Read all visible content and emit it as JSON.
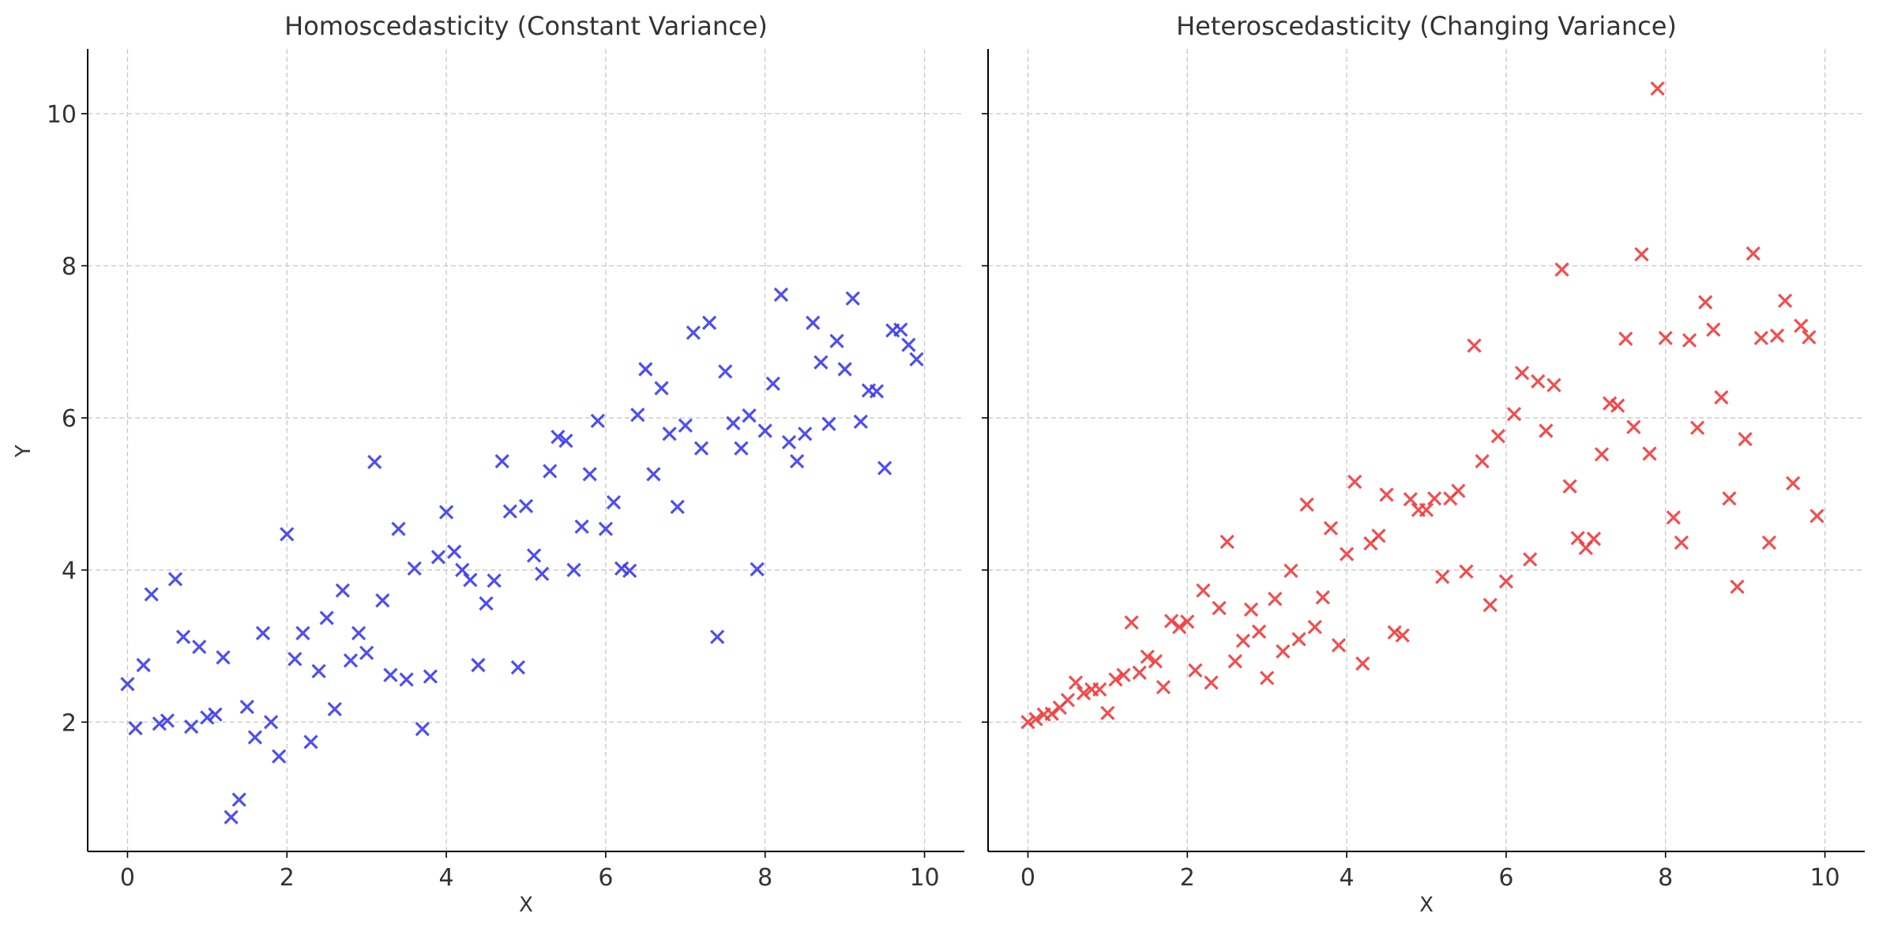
{
  "chart_data": [
    {
      "type": "scatter",
      "title": "Homoscedasticity (Constant Variance)",
      "xlabel": "X",
      "ylabel": "Y",
      "xlim": [
        -0.5,
        10.5
      ],
      "ylim": [
        0.3,
        10.85
      ],
      "xticks": [
        0,
        2,
        4,
        6,
        8,
        10
      ],
      "yticks": [
        2,
        4,
        6,
        8,
        10
      ],
      "grid": true,
      "marker": "x",
      "color": "#3b3bf0",
      "series": [
        {
          "points": [
            [
              0.0,
              2.5
            ],
            [
              0.1,
              1.92
            ],
            [
              0.2,
              2.75
            ],
            [
              0.3,
              3.68
            ],
            [
              0.4,
              1.98
            ],
            [
              0.5,
              2.02
            ],
            [
              0.6,
              3.88
            ],
            [
              0.7,
              3.12
            ],
            [
              0.8,
              1.94
            ],
            [
              0.9,
              2.99
            ],
            [
              1.0,
              2.06
            ],
            [
              1.1,
              2.1
            ],
            [
              1.2,
              2.85
            ],
            [
              1.3,
              0.75
            ],
            [
              1.4,
              0.98
            ],
            [
              1.5,
              2.2
            ],
            [
              1.6,
              1.8
            ],
            [
              1.7,
              3.17
            ],
            [
              1.8,
              2.0
            ],
            [
              1.9,
              1.55
            ],
            [
              2.0,
              4.47
            ],
            [
              2.1,
              2.83
            ],
            [
              2.2,
              3.17
            ],
            [
              2.3,
              1.74
            ],
            [
              2.4,
              2.67
            ],
            [
              2.5,
              3.37
            ],
            [
              2.6,
              2.17
            ],
            [
              2.7,
              3.73
            ],
            [
              2.8,
              2.81
            ],
            [
              2.9,
              3.17
            ],
            [
              3.0,
              2.91
            ],
            [
              3.1,
              5.42
            ],
            [
              3.2,
              3.6
            ],
            [
              3.3,
              2.62
            ],
            [
              3.4,
              4.54
            ],
            [
              3.5,
              2.56
            ],
            [
              3.6,
              4.02
            ],
            [
              3.7,
              1.91
            ],
            [
              3.8,
              2.6
            ],
            [
              3.9,
              4.17
            ],
            [
              4.0,
              4.76
            ],
            [
              4.1,
              4.24
            ],
            [
              4.2,
              4.0
            ],
            [
              4.3,
              3.87
            ],
            [
              4.4,
              2.75
            ],
            [
              4.5,
              3.56
            ],
            [
              4.6,
              3.86
            ],
            [
              4.7,
              5.43
            ],
            [
              4.8,
              4.77
            ],
            [
              4.9,
              2.72
            ],
            [
              5.0,
              4.84
            ],
            [
              5.1,
              4.19
            ],
            [
              5.2,
              3.95
            ],
            [
              5.3,
              5.3
            ],
            [
              5.4,
              5.75
            ],
            [
              5.5,
              5.7
            ],
            [
              5.6,
              4.0
            ],
            [
              5.7,
              4.57
            ],
            [
              5.8,
              5.26
            ],
            [
              5.9,
              5.96
            ],
            [
              6.0,
              4.54
            ],
            [
              6.1,
              4.89
            ],
            [
              6.2,
              4.02
            ],
            [
              6.3,
              3.99
            ],
            [
              6.4,
              6.04
            ],
            [
              6.5,
              6.64
            ],
            [
              6.6,
              5.26
            ],
            [
              6.7,
              6.39
            ],
            [
              6.8,
              5.79
            ],
            [
              6.9,
              4.83
            ],
            [
              7.0,
              5.9
            ],
            [
              7.1,
              7.12
            ],
            [
              7.2,
              5.6
            ],
            [
              7.3,
              7.25
            ],
            [
              7.4,
              3.12
            ],
            [
              7.5,
              6.61
            ],
            [
              7.6,
              5.93
            ],
            [
              7.7,
              5.6
            ],
            [
              7.8,
              6.03
            ],
            [
              7.9,
              4.01
            ],
            [
              8.0,
              5.83
            ],
            [
              8.1,
              6.45
            ],
            [
              8.2,
              7.62
            ],
            [
              8.3,
              5.68
            ],
            [
              8.4,
              5.43
            ],
            [
              8.5,
              5.79
            ],
            [
              8.6,
              7.25
            ],
            [
              8.7,
              6.73
            ],
            [
              8.8,
              5.92
            ],
            [
              8.9,
              7.01
            ],
            [
              9.0,
              6.64
            ],
            [
              9.1,
              7.57
            ],
            [
              9.2,
              5.95
            ],
            [
              9.3,
              6.36
            ],
            [
              9.4,
              6.35
            ],
            [
              9.5,
              5.34
            ],
            [
              9.6,
              7.15
            ],
            [
              9.7,
              7.16
            ],
            [
              9.8,
              6.96
            ],
            [
              9.9,
              6.77
            ]
          ]
        }
      ]
    },
    {
      "type": "scatter",
      "title": "Heteroscedasticity (Changing Variance)",
      "xlabel": "X",
      "ylabel": "",
      "xlim": [
        -0.5,
        10.5
      ],
      "ylim": [
        0.3,
        10.85
      ],
      "xticks": [
        0,
        2,
        4,
        6,
        8,
        10
      ],
      "yticks": [
        2,
        4,
        6,
        8,
        10
      ],
      "grid": true,
      "marker": "x",
      "color": "#f03b3b",
      "series": [
        {
          "points": [
            [
              0.0,
              2.0
            ],
            [
              0.1,
              2.04
            ],
            [
              0.2,
              2.1
            ],
            [
              0.3,
              2.11
            ],
            [
              0.4,
              2.19
            ],
            [
              0.5,
              2.29
            ],
            [
              0.6,
              2.52
            ],
            [
              0.7,
              2.38
            ],
            [
              0.8,
              2.43
            ],
            [
              0.9,
              2.43
            ],
            [
              1.0,
              2.12
            ],
            [
              1.1,
              2.56
            ],
            [
              1.2,
              2.62
            ],
            [
              1.3,
              3.31
            ],
            [
              1.4,
              2.65
            ],
            [
              1.5,
              2.86
            ],
            [
              1.6,
              2.8
            ],
            [
              1.7,
              2.46
            ],
            [
              1.8,
              3.33
            ],
            [
              1.9,
              3.25
            ],
            [
              2.0,
              3.32
            ],
            [
              2.1,
              2.68
            ],
            [
              2.2,
              3.73
            ],
            [
              2.3,
              2.52
            ],
            [
              2.4,
              3.5
            ],
            [
              2.5,
              4.37
            ],
            [
              2.6,
              2.8
            ],
            [
              2.7,
              3.07
            ],
            [
              2.8,
              3.48
            ],
            [
              2.9,
              3.19
            ],
            [
              3.0,
              2.58
            ],
            [
              3.1,
              3.62
            ],
            [
              3.2,
              2.93
            ],
            [
              3.3,
              3.99
            ],
            [
              3.4,
              3.09
            ],
            [
              3.5,
              4.86
            ],
            [
              3.6,
              3.25
            ],
            [
              3.7,
              3.64
            ],
            [
              3.8,
              4.55
            ],
            [
              3.9,
              3.01
            ],
            [
              4.0,
              4.21
            ],
            [
              4.1,
              5.16
            ],
            [
              4.2,
              2.77
            ],
            [
              4.3,
              4.35
            ],
            [
              4.4,
              4.45
            ],
            [
              4.5,
              4.99
            ],
            [
              4.6,
              3.18
            ],
            [
              4.7,
              3.14
            ],
            [
              4.8,
              4.93
            ],
            [
              4.9,
              4.79
            ],
            [
              5.0,
              4.79
            ],
            [
              5.1,
              4.94
            ],
            [
              5.2,
              3.91
            ],
            [
              5.3,
              4.94
            ],
            [
              5.4,
              5.04
            ],
            [
              5.5,
              3.98
            ],
            [
              5.6,
              6.95
            ],
            [
              5.7,
              5.43
            ],
            [
              5.8,
              3.54
            ],
            [
              5.9,
              5.76
            ],
            [
              6.0,
              3.85
            ],
            [
              6.1,
              6.05
            ],
            [
              6.2,
              6.59
            ],
            [
              6.3,
              4.14
            ],
            [
              6.4,
              6.48
            ],
            [
              6.5,
              5.83
            ],
            [
              6.6,
              6.43
            ],
            [
              6.7,
              7.95
            ],
            [
              6.8,
              5.1
            ],
            [
              6.9,
              4.42
            ],
            [
              7.0,
              4.29
            ],
            [
              7.1,
              4.41
            ],
            [
              7.2,
              5.52
            ],
            [
              7.3,
              6.19
            ],
            [
              7.4,
              6.16
            ],
            [
              7.5,
              7.04
            ],
            [
              7.6,
              5.88
            ],
            [
              7.7,
              8.15
            ],
            [
              7.8,
              5.53
            ],
            [
              7.9,
              10.33
            ],
            [
              8.0,
              7.05
            ],
            [
              8.1,
              4.69
            ],
            [
              8.2,
              4.36
            ],
            [
              8.3,
              7.02
            ],
            [
              8.4,
              5.87
            ],
            [
              8.5,
              7.52
            ],
            [
              8.6,
              7.16
            ],
            [
              8.7,
              6.27
            ],
            [
              8.8,
              4.94
            ],
            [
              8.9,
              3.78
            ],
            [
              9.0,
              5.72
            ],
            [
              9.1,
              8.16
            ],
            [
              9.2,
              7.05
            ],
            [
              9.3,
              4.36
            ],
            [
              9.4,
              7.08
            ],
            [
              9.5,
              7.54
            ],
            [
              9.6,
              5.14
            ],
            [
              9.7,
              7.21
            ],
            [
              9.8,
              7.06
            ],
            [
              9.9,
              4.71
            ]
          ]
        }
      ]
    }
  ]
}
